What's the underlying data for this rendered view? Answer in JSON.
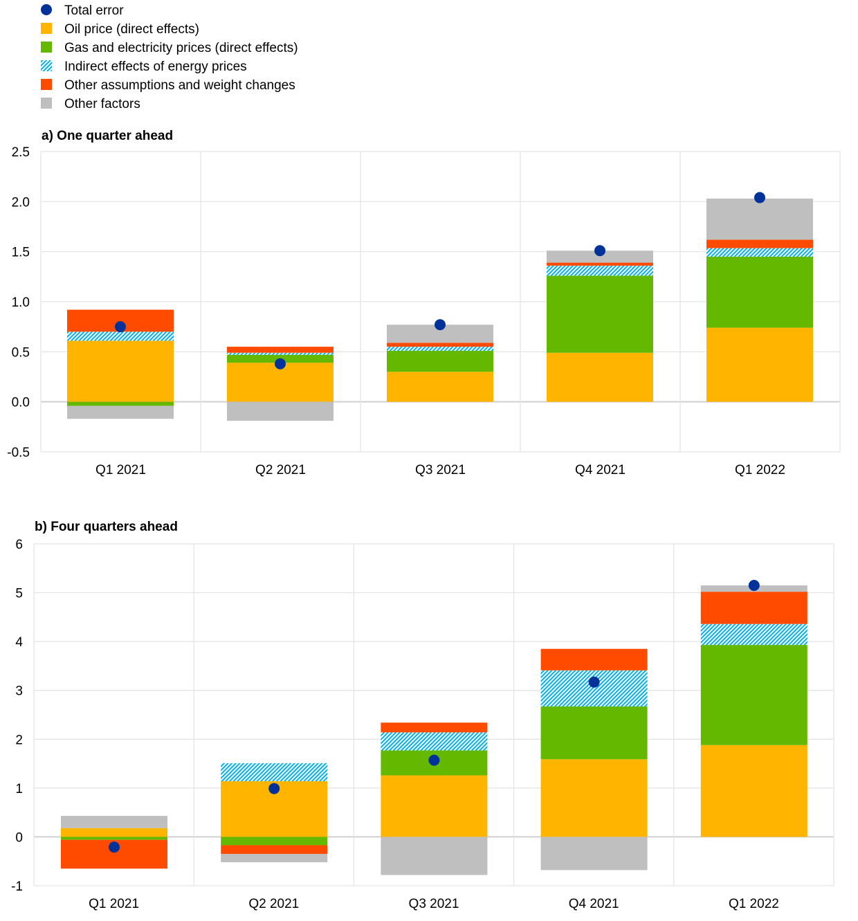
{
  "colors": {
    "total_error": "#003299",
    "oil": "#FFB400",
    "gas": "#65B800",
    "indirect": "#00B1EA",
    "other_assumptions": "#FF4B00",
    "other_factors": "#BFBFBF"
  },
  "legend": [
    {
      "key": "total_error",
      "label": "Total error",
      "shape": "circle"
    },
    {
      "key": "oil",
      "label": "Oil price (direct effects)",
      "shape": "square"
    },
    {
      "key": "gas",
      "label": "Gas and electricity prices (direct effects)",
      "shape": "square"
    },
    {
      "key": "indirect",
      "label": "Indirect effects of energy prices",
      "shape": "hatch"
    },
    {
      "key": "other_assumptions",
      "label": "Other assumptions and weight changes",
      "shape": "square"
    },
    {
      "key": "other_factors",
      "label": "Other factors",
      "shape": "square"
    }
  ],
  "chart_data": [
    {
      "type": "bar",
      "stacked": true,
      "title": "a) One quarter ahead",
      "xlabel": "",
      "ylabel": "",
      "ylim": [
        -0.5,
        2.5
      ],
      "yticks": [
        -0.5,
        0.0,
        0.5,
        1.0,
        1.5,
        2.0,
        2.5
      ],
      "ytick_labels": [
        "-0.5",
        "0.0",
        "0.5",
        "1.0",
        "1.5",
        "2.0",
        "2.5"
      ],
      "grid": true,
      "legend_position": "top-left",
      "categories": [
        "Q1 2021",
        "Q2 2021",
        "Q3 2021",
        "Q4 2021",
        "Q1 2022"
      ],
      "series": [
        {
          "key": "oil",
          "name": "Oil price (direct effects)",
          "values": [
            0.61,
            0.39,
            0.3,
            0.49,
            0.74
          ]
        },
        {
          "key": "gas",
          "name": "Gas and electricity prices (direct effects)",
          "values": [
            -0.04,
            0.08,
            0.21,
            0.77,
            0.71
          ]
        },
        {
          "key": "indirect",
          "name": "Indirect effects of energy prices",
          "values": [
            0.09,
            0.02,
            0.04,
            0.1,
            0.085
          ]
        },
        {
          "key": "other_assumptions",
          "name": "Other assumptions and weight changes",
          "values": [
            0.22,
            0.06,
            0.04,
            0.03,
            0.085
          ]
        },
        {
          "key": "other_factors",
          "name": "Other factors",
          "values": [
            -0.13,
            -0.19,
            0.18,
            0.12,
            0.41
          ]
        }
      ],
      "total_error": [
        0.75,
        0.38,
        0.77,
        1.51,
        2.04
      ]
    },
    {
      "type": "bar",
      "stacked": true,
      "title": "b) Four quarters ahead",
      "xlabel": "",
      "ylabel": "",
      "ylim": [
        -1,
        6
      ],
      "yticks": [
        -1,
        0,
        1,
        2,
        3,
        4,
        5,
        6
      ],
      "ytick_labels": [
        "-1",
        "0",
        "1",
        "2",
        "3",
        "4",
        "5",
        "6"
      ],
      "grid": true,
      "categories": [
        "Q1 2021",
        "Q2 2021",
        "Q3 2021",
        "Q4 2021",
        "Q1 2022"
      ],
      "series": [
        {
          "key": "oil",
          "name": "Oil price (direct effects)",
          "values": [
            0.18,
            1.14,
            1.26,
            1.59,
            1.88
          ]
        },
        {
          "key": "gas",
          "name": "Gas and electricity prices (direct effects)",
          "values": [
            -0.06,
            -0.17,
            0.51,
            1.08,
            2.05
          ]
        },
        {
          "key": "indirect",
          "name": "Indirect effects of energy prices",
          "values": [
            0.0,
            0.37,
            0.37,
            0.74,
            0.43
          ]
        },
        {
          "key": "other_assumptions",
          "name": "Other assumptions and weight changes",
          "values": [
            -0.59,
            -0.18,
            0.2,
            0.44,
            0.66
          ]
        },
        {
          "key": "other_factors",
          "name": "Other factors",
          "values": [
            0.25,
            -0.17,
            -0.78,
            -0.68,
            0.13
          ]
        }
      ],
      "total_error": [
        -0.21,
        0.99,
        1.57,
        3.17,
        5.15
      ]
    }
  ]
}
